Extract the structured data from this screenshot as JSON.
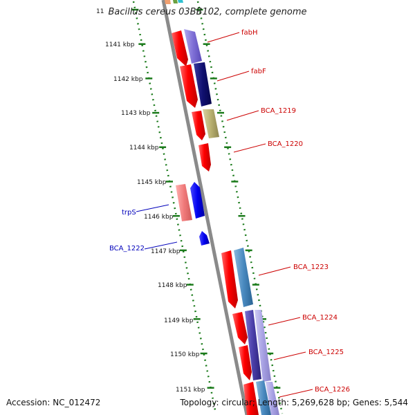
{
  "title": "Bacillus cereus 03BB102, complete genome",
  "footer": {
    "accession": "Accession: NC_012472",
    "stats": "Topology: circular; Length: 5,269,628 bp; Genes: 5,544"
  },
  "colors": {
    "backbone": "#8a8a8a",
    "tick": "#1a7a1a",
    "label_forward": "#cc0000",
    "label_reverse": "#0000bb"
  },
  "ruler": [
    "11",
    "1141 kbp",
    "1142 kbp",
    "1143 kbp",
    "1144 kbp",
    "1145 kbp",
    "1146 kbp",
    "1147 kbp",
    "1148 kbp",
    "1149 kbp",
    "1150 kbp",
    "1151 kbp"
  ],
  "gene_labels": [
    {
      "name": "fabH",
      "strand": "forward"
    },
    {
      "name": "fabF",
      "strand": "forward"
    },
    {
      "name": "BCA_1219",
      "strand": "forward"
    },
    {
      "name": "BCA_1220",
      "strand": "forward"
    },
    {
      "name": "trpS",
      "strand": "reverse"
    },
    {
      "name": "BCA_1222",
      "strand": "reverse"
    },
    {
      "name": "BCA_1223",
      "strand": "forward"
    },
    {
      "name": "BCA_1224",
      "strand": "forward"
    },
    {
      "name": "BCA_1225",
      "strand": "forward"
    },
    {
      "name": "BCA_1226",
      "strand": "forward"
    }
  ]
}
